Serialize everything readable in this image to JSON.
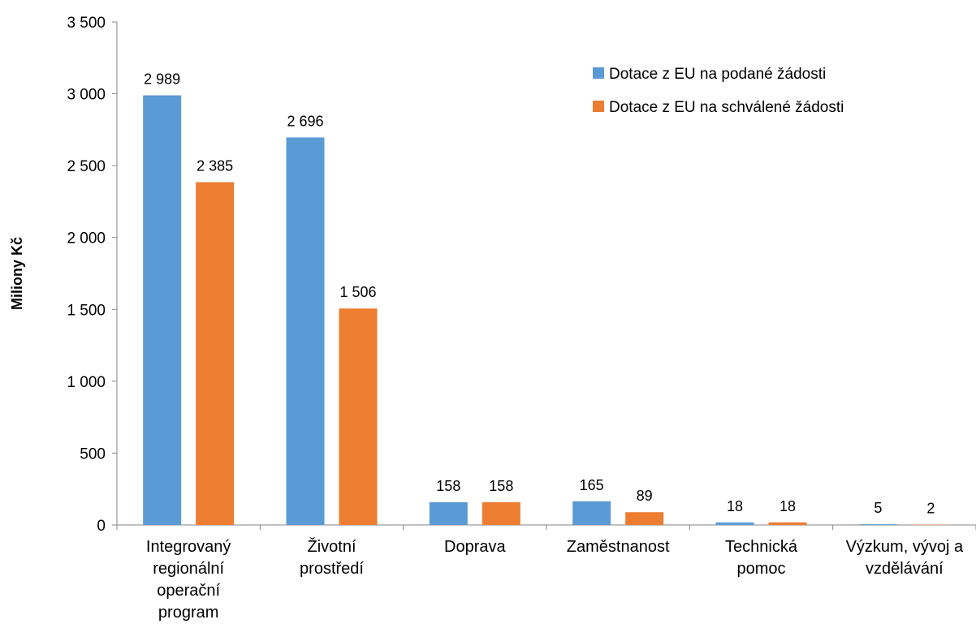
{
  "chart_data": {
    "type": "bar",
    "categories": [
      [
        "Integrovaný",
        "regionální",
        "operační",
        "program"
      ],
      [
        "Životní",
        "prostředí"
      ],
      [
        "Doprava"
      ],
      [
        "Zaměstnanost"
      ],
      [
        "Technická",
        "pomoc"
      ],
      [
        "Výzkum, vývoj a",
        "vzdělávání"
      ]
    ],
    "series": [
      {
        "name": "Dotace z EU na podané žádosti",
        "color": "#5B9BD5",
        "values": [
          2989,
          2696,
          158,
          165,
          18,
          5
        ],
        "labels": [
          "2 989",
          "2 696",
          "158",
          "165",
          "18",
          "5"
        ]
      },
      {
        "name": "Dotace z EU na schválené žádosti",
        "color": "#ED7D31",
        "values": [
          2385,
          1506,
          158,
          89,
          18,
          2
        ],
        "labels": [
          "2 385",
          "1 506",
          "158",
          "89",
          "18",
          "2"
        ]
      }
    ],
    "ylabel": "Miliony Kč",
    "ylim": [
      0,
      3500
    ],
    "yticks": [
      0,
      500,
      1000,
      1500,
      2000,
      2500,
      3000,
      3500
    ],
    "ytick_labels": [
      "0",
      "500",
      "1 000",
      "1 500",
      "2 000",
      "2 500",
      "3 000",
      "3 500"
    ],
    "grid": false,
    "legend": "top-right"
  }
}
